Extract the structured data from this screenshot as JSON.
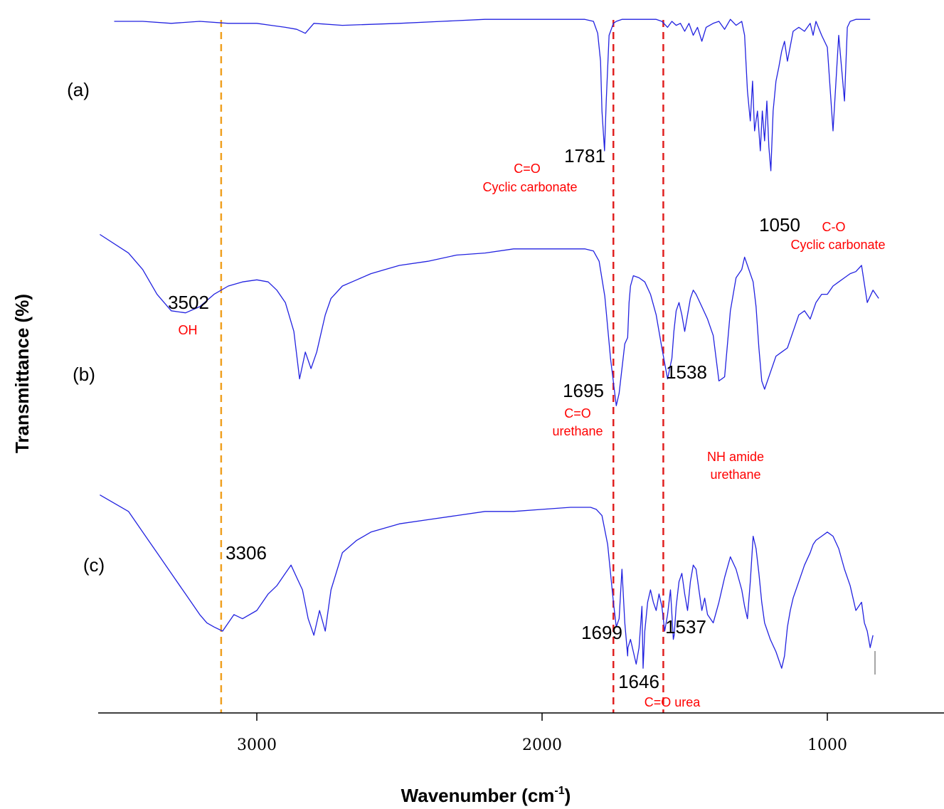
{
  "chart_data": {
    "type": "line",
    "xlabel": "Wavenumber (cm",
    "xlabel_sup": "-1",
    "xlabel_close": ")",
    "ylabel": "Transmittance (%)",
    "x_reversed": true,
    "xlim": [
      3550,
      700
    ],
    "xticks": [
      3000,
      2000,
      1000
    ],
    "yticks_shown": false,
    "colors": {
      "series": "#2222e0",
      "markers": "#e02020",
      "oh_marker": "#f0a020",
      "annotation": "#ff0000"
    },
    "series": [
      {
        "name": "(a)",
        "x": [
          3500,
          3400,
          3300,
          3200,
          3100,
          3000,
          2950,
          2900,
          2860,
          2830,
          2800,
          2700,
          2500,
          2350,
          2200,
          2100,
          2000,
          1900,
          1850,
          1820,
          1805,
          1795,
          1790,
          1781,
          1775,
          1765,
          1750,
          1740,
          1720,
          1700,
          1650,
          1600,
          1580,
          1560,
          1545,
          1530,
          1515,
          1500,
          1485,
          1470,
          1455,
          1440,
          1425,
          1400,
          1380,
          1360,
          1340,
          1320,
          1300,
          1290,
          1280,
          1270,
          1262,
          1255,
          1245,
          1235,
          1228,
          1220,
          1212,
          1205,
          1198,
          1190,
          1180,
          1170,
          1160,
          1150,
          1140,
          1120,
          1100,
          1080,
          1060,
          1050,
          1040,
          1020,
          1000,
          980,
          960,
          940,
          930,
          920,
          900,
          880,
          860,
          850
        ],
        "y": [
          95,
          95,
          94,
          95,
          94,
          94,
          93,
          92,
          91,
          89,
          94,
          93,
          94,
          95,
          96,
          96,
          96,
          96,
          96,
          95,
          89,
          75,
          50,
          30,
          55,
          88,
          94,
          95,
          96,
          96,
          96,
          96,
          95,
          92,
          95,
          93,
          94,
          90,
          94,
          88,
          92,
          85,
          92,
          94,
          95,
          91,
          96,
          93,
          95,
          88,
          60,
          45,
          65,
          40,
          50,
          30,
          50,
          35,
          55,
          32,
          20,
          50,
          65,
          72,
          80,
          85,
          75,
          90,
          92,
          90,
          94,
          88,
          95,
          88,
          82,
          40,
          88,
          55,
          92,
          95,
          96,
          96,
          96,
          96
        ]
      },
      {
        "name": "(b)",
        "x": [
          3550,
          3450,
          3400,
          3350,
          3300,
          3250,
          3200,
          3150,
          3100,
          3050,
          3000,
          2960,
          2930,
          2900,
          2870,
          2850,
          2830,
          2810,
          2790,
          2760,
          2740,
          2700,
          2650,
          2600,
          2550,
          2500,
          2400,
          2300,
          2200,
          2100,
          2000,
          1900,
          1850,
          1820,
          1800,
          1780,
          1760,
          1740,
          1730,
          1720,
          1710,
          1700,
          1695,
          1690,
          1680,
          1660,
          1640,
          1620,
          1600,
          1580,
          1560,
          1545,
          1538,
          1530,
          1520,
          1510,
          1500,
          1490,
          1480,
          1470,
          1460,
          1440,
          1420,
          1400,
          1380,
          1360,
          1340,
          1320,
          1300,
          1290,
          1280,
          1270,
          1260,
          1250,
          1240,
          1230,
          1220,
          1200,
          1180,
          1160,
          1140,
          1120,
          1100,
          1080,
          1060,
          1040,
          1020,
          1000,
          980,
          960,
          940,
          920,
          900,
          880,
          860,
          840,
          820
        ],
        "y": [
          95,
          86,
          78,
          66,
          58,
          57,
          60,
          66,
          70,
          72,
          73,
          72,
          68,
          62,
          48,
          25,
          38,
          30,
          38,
          56,
          64,
          70,
          73,
          76,
          78,
          80,
          82,
          85,
          86,
          88,
          88,
          88,
          88,
          87,
          82,
          65,
          35,
          12,
          18,
          30,
          42,
          45,
          62,
          70,
          75,
          74,
          72,
          66,
          56,
          40,
          25,
          35,
          48,
          58,
          62,
          56,
          48,
          56,
          64,
          68,
          66,
          60,
          54,
          46,
          24,
          26,
          58,
          74,
          78,
          84,
          80,
          76,
          72,
          60,
          40,
          24,
          20,
          28,
          36,
          38,
          40,
          48,
          56,
          58,
          54,
          62,
          66,
          66,
          70,
          72,
          74,
          76,
          77,
          80,
          62,
          68,
          64
        ]
      },
      {
        "name": "(c)",
        "x": [
          3550,
          3450,
          3400,
          3350,
          3300,
          3250,
          3200,
          3175,
          3150,
          3120,
          3100,
          3080,
          3050,
          3000,
          2960,
          2930,
          2900,
          2880,
          2860,
          2840,
          2820,
          2800,
          2780,
          2760,
          2740,
          2700,
          2650,
          2600,
          2550,
          2500,
          2400,
          2300,
          2200,
          2100,
          2000,
          1900,
          1850,
          1830,
          1810,
          1790,
          1770,
          1750,
          1740,
          1730,
          1720,
          1710,
          1700,
          1699,
          1690,
          1680,
          1670,
          1660,
          1650,
          1646,
          1640,
          1630,
          1620,
          1610,
          1600,
          1590,
          1580,
          1570,
          1560,
          1550,
          1540,
          1537,
          1530,
          1520,
          1510,
          1500,
          1490,
          1480,
          1470,
          1460,
          1450,
          1440,
          1430,
          1420,
          1400,
          1380,
          1360,
          1340,
          1320,
          1300,
          1290,
          1280,
          1270,
          1260,
          1250,
          1240,
          1230,
          1220,
          1210,
          1200,
          1180,
          1160,
          1150,
          1140,
          1130,
          1120,
          1100,
          1080,
          1060,
          1050,
          1040,
          1020,
          1000,
          980,
          960,
          940,
          920,
          900,
          880,
          870,
          860,
          850,
          840
        ],
        "y": [
          86,
          78,
          68,
          58,
          48,
          38,
          28,
          24,
          22,
          20,
          24,
          28,
          26,
          30,
          38,
          42,
          48,
          52,
          46,
          40,
          26,
          18,
          30,
          20,
          40,
          58,
          64,
          68,
          70,
          72,
          74,
          76,
          78,
          78,
          79,
          80,
          80,
          80,
          79,
          76,
          62,
          34,
          22,
          26,
          50,
          24,
          8,
          12,
          16,
          10,
          4,
          12,
          32,
          2,
          20,
          34,
          40,
          34,
          30,
          38,
          32,
          20,
          28,
          40,
          16,
          18,
          32,
          44,
          48,
          38,
          30,
          44,
          52,
          50,
          40,
          30,
          36,
          28,
          24,
          34,
          46,
          56,
          50,
          40,
          32,
          26,
          44,
          66,
          60,
          48,
          34,
          24,
          20,
          16,
          10,
          2,
          8,
          22,
          30,
          36,
          44,
          52,
          58,
          62,
          64,
          66,
          68,
          66,
          60,
          50,
          42,
          30,
          34,
          24,
          20,
          12,
          18
        ]
      }
    ],
    "peak_labels": [
      {
        "text": "1781"
      },
      {
        "text": "1050"
      },
      {
        "text": "3502"
      },
      {
        "text": "1695"
      },
      {
        "text": "1538"
      },
      {
        "text": "3306"
      },
      {
        "text": "1699"
      },
      {
        "text": "1537"
      },
      {
        "text": "1646"
      }
    ],
    "annotations": [
      {
        "text": "C=O"
      },
      {
        "text": "Cyclic carbonate"
      },
      {
        "text": "C-O"
      },
      {
        "text": "Cyclic carbonate"
      },
      {
        "text": "OH"
      },
      {
        "text": "C=O"
      },
      {
        "text": "urethane"
      },
      {
        "text": "NH amide"
      },
      {
        "text": "urethane"
      },
      {
        "text": "C=O urea"
      }
    ],
    "reference_lines": [
      {
        "x": 3125,
        "color": "#f0a020"
      },
      {
        "x": 1750,
        "color": "#e02020"
      },
      {
        "x": 1575,
        "color": "#e02020"
      }
    ]
  }
}
